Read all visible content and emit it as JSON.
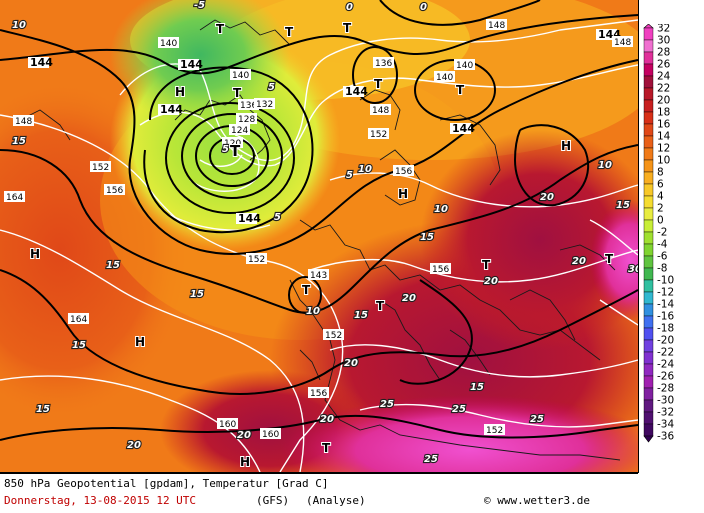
{
  "footer": {
    "title": "850 hPa Geopotential [gpdam], Temperatur [Grad C]",
    "date": "Donnerstag, 13-08-2015  12 UTC",
    "model": "(GFS)",
    "type": "(Analyse)",
    "copyright": "© www.wetter3.de"
  },
  "legend": {
    "values": [
      "32",
      "30",
      "28",
      "26",
      "24",
      "22",
      "20",
      "18",
      "16",
      "14",
      "12",
      "10",
      "8",
      "6",
      "4",
      "2",
      "0",
      "-2",
      "-4",
      "-6",
      "-8",
      "-10",
      "-12",
      "-14",
      "-16",
      "-18",
      "-20",
      "-22",
      "-24",
      "-26",
      "-28",
      "-30",
      "-32",
      "-34",
      "-36"
    ],
    "colors": [
      "#f040c0",
      "#f070d0",
      "#e0309a",
      "#c40060",
      "#a0103a",
      "#b81828",
      "#c82020",
      "#d83018",
      "#e04818",
      "#e86018",
      "#f07a18",
      "#f59418",
      "#f8ae20",
      "#f8c828",
      "#f5dc30",
      "#e8ec40",
      "#c8ee38",
      "#a0e030",
      "#80d430",
      "#60c440",
      "#40b850",
      "#30c0a0",
      "#30b8d0",
      "#3090e0",
      "#4070f0",
      "#5050f0",
      "#7040e0",
      "#8030d0",
      "#9028c0",
      "#a020b0",
      "#8020a0",
      "#601880",
      "#501070",
      "#400860",
      "#300050"
    ]
  },
  "map": {
    "pressure_labels": [
      {
        "text": "144"
      },
      {
        "text": "144"
      },
      {
        "text": "144"
      },
      {
        "text": "144"
      },
      {
        "text": "144"
      },
      {
        "text": "144"
      },
      {
        "text": "144"
      },
      {
        "text": "148"
      },
      {
        "text": "148"
      },
      {
        "text": "152"
      },
      {
        "text": "152"
      },
      {
        "text": "152"
      },
      {
        "text": "156"
      },
      {
        "text": "156"
      },
      {
        "text": "156"
      },
      {
        "text": "160"
      },
      {
        "text": "160"
      },
      {
        "text": "164"
      },
      {
        "text": "164"
      },
      {
        "text": "140"
      },
      {
        "text": "140"
      },
      {
        "text": "140"
      },
      {
        "text": "136"
      },
      {
        "text": "132"
      },
      {
        "text": "128"
      },
      {
        "text": "124"
      },
      {
        "text": "120"
      },
      {
        "text": "148"
      },
      {
        "text": "143"
      },
      {
        "text": "152"
      },
      {
        "text": "156"
      },
      {
        "text": "152"
      },
      {
        "text": "148"
      },
      {
        "text": "140"
      },
      {
        "text": "136"
      }
    ],
    "temp_labels": [
      {
        "text": "10"
      },
      {
        "text": "10"
      },
      {
        "text": "10"
      },
      {
        "text": "10"
      },
      {
        "text": "10"
      },
      {
        "text": "15"
      },
      {
        "text": "15"
      },
      {
        "text": "15"
      },
      {
        "text": "15"
      },
      {
        "text": "15"
      },
      {
        "text": "15"
      },
      {
        "text": "15"
      },
      {
        "text": "15"
      },
      {
        "text": "15"
      },
      {
        "text": "20"
      },
      {
        "text": "20"
      },
      {
        "text": "20"
      },
      {
        "text": "20"
      },
      {
        "text": "20"
      },
      {
        "text": "20"
      },
      {
        "text": "20"
      },
      {
        "text": "20"
      },
      {
        "text": "25"
      },
      {
        "text": "25"
      },
      {
        "text": "25"
      },
      {
        "text": "25"
      },
      {
        "text": "5"
      },
      {
        "text": "5"
      },
      {
        "text": "5"
      },
      {
        "text": "5"
      },
      {
        "text": "0"
      },
      {
        "text": "0"
      },
      {
        "text": "-5"
      },
      {
        "text": "30"
      }
    ],
    "high_marks": [
      "H",
      "H",
      "H",
      "H",
      "H",
      "H"
    ],
    "low_marks": [
      "T",
      "T",
      "T",
      "T",
      "T",
      "T",
      "T",
      "T",
      "T",
      "T",
      "T",
      "T"
    ]
  }
}
